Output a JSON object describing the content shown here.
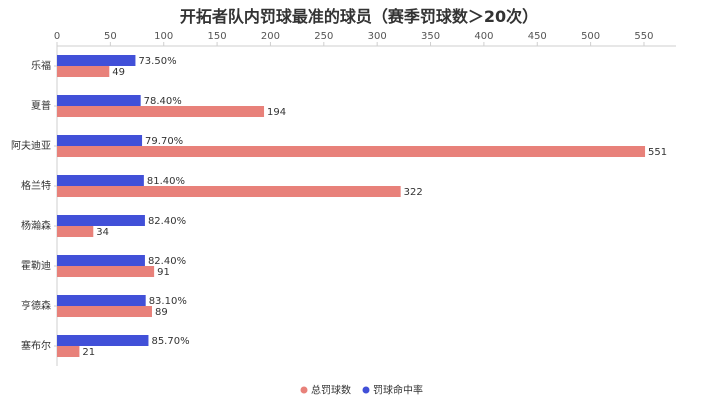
{
  "chart_data": {
    "type": "bar",
    "orientation": "horizontal",
    "title": "开拓者队内罚球最准的球员（赛季罚球数＞20次）",
    "categories": [
      "乐福",
      "夏普",
      "阿夫迪亚",
      "格兰特",
      "杨瀚森",
      "霍勒迪",
      "亨德森",
      "塞布尔"
    ],
    "series": [
      {
        "name": "罚球命中率",
        "values": [
          73.5,
          78.4,
          79.7,
          81.4,
          82.4,
          82.4,
          83.1,
          85.7
        ],
        "labels": [
          "73.50%",
          "78.40%",
          "79.70%",
          "81.40%",
          "82.40%",
          "82.40%",
          "83.10%",
          "85.70%"
        ],
        "color": "#4150d8"
      },
      {
        "name": "总罚球数",
        "values": [
          49,
          194,
          551,
          322,
          34,
          91,
          89,
          21
        ],
        "labels": [
          "49",
          "194",
          "551",
          "322",
          "34",
          "91",
          "89",
          "21"
        ],
        "color": "#e8817a"
      }
    ],
    "x_axis": {
      "position": "top",
      "range": [
        0,
        580
      ],
      "ticks": [
        "0",
        "50",
        "100",
        "150",
        "200",
        "250",
        "300",
        "350",
        "400",
        "450",
        "500",
        "550"
      ]
    },
    "grid": false,
    "legend": {
      "position": "bottom",
      "entries": [
        {
          "label": "总罚球数",
          "color": "#e8817a"
        },
        {
          "label": "罚球命中率",
          "color": "#4150d8"
        }
      ]
    }
  }
}
